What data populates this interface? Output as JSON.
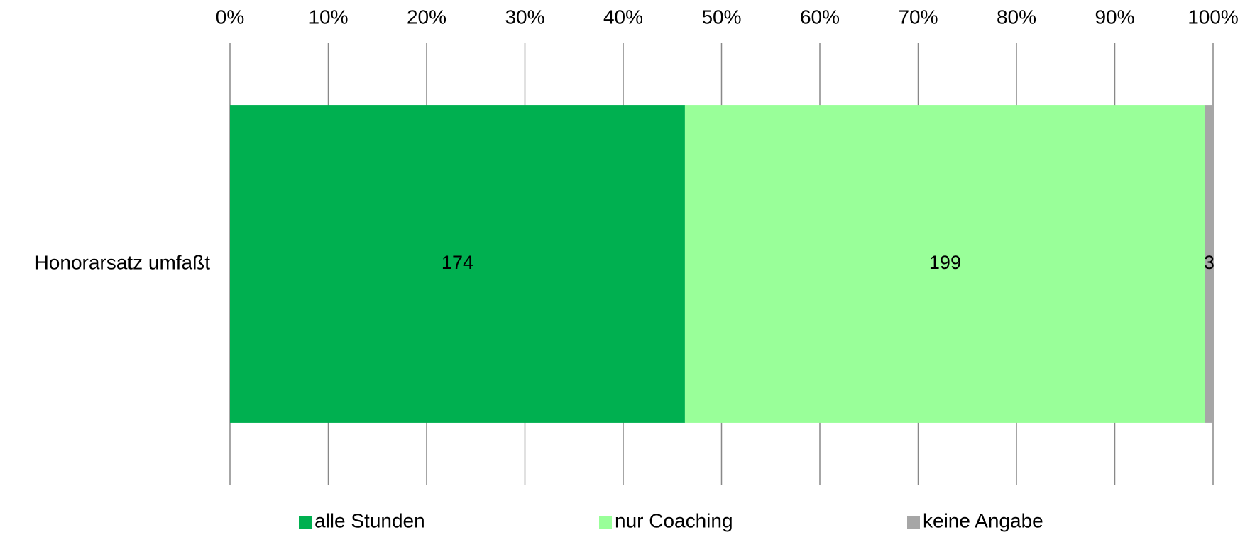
{
  "chart_data": {
    "type": "stacked_bar_percent",
    "orientation": "horizontal",
    "categories": [
      "Honorarsatz umfaßt"
    ],
    "series": [
      {
        "name": "alle Stunden",
        "color": "#00b050",
        "values": [
          174
        ]
      },
      {
        "name": "nur Coaching",
        "color": "#99ff99",
        "values": [
          199
        ]
      },
      {
        "name": "keine Angabe",
        "color": "#a6a6a6",
        "values": [
          3
        ]
      }
    ],
    "xlim": [
      0,
      100
    ],
    "xticks": [
      {
        "value": 0,
        "label": "0%"
      },
      {
        "value": 10,
        "label": "10%"
      },
      {
        "value": 20,
        "label": "20%"
      },
      {
        "value": 30,
        "label": "30%"
      },
      {
        "value": 40,
        "label": "40%"
      },
      {
        "value": 50,
        "label": "50%"
      },
      {
        "value": 60,
        "label": "60%"
      },
      {
        "value": 70,
        "label": "70%"
      },
      {
        "value": 80,
        "label": "80%"
      },
      {
        "value": 90,
        "label": "90%"
      },
      {
        "value": 100,
        "label": "100%"
      }
    ],
    "grid": true,
    "legend": "bottom"
  }
}
